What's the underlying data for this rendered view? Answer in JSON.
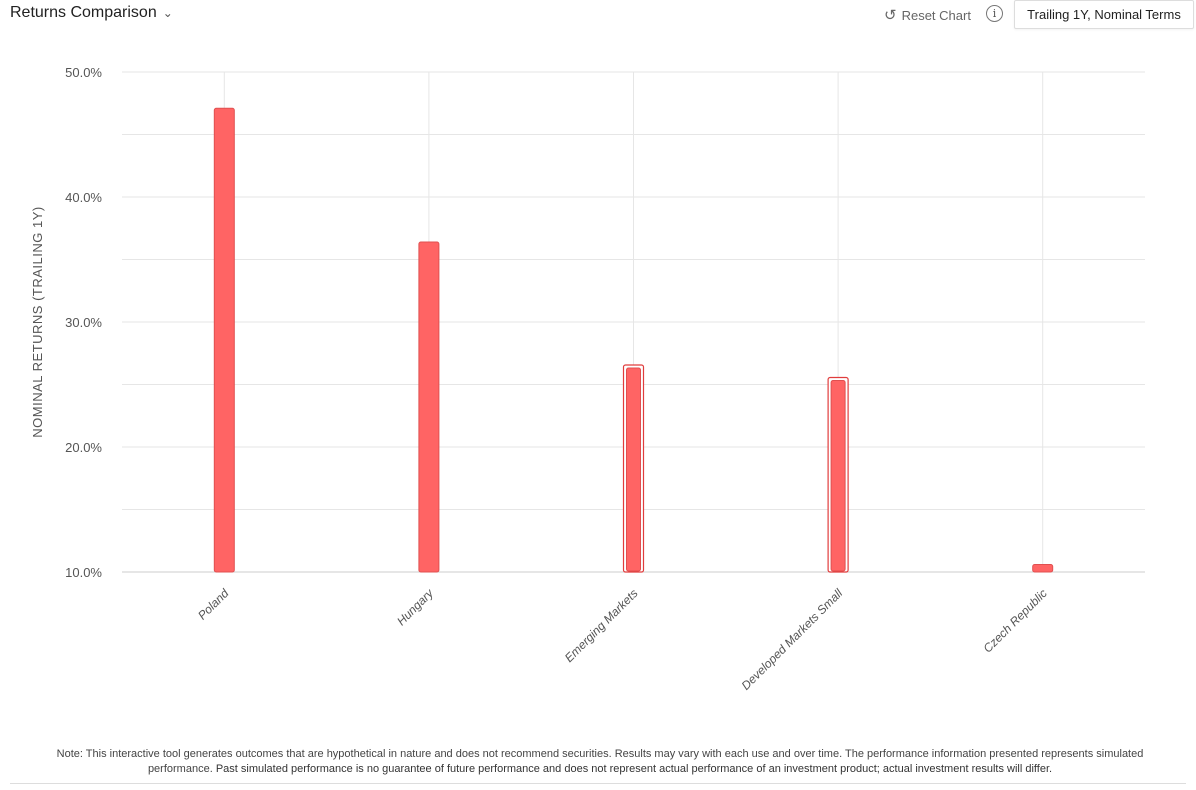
{
  "header": {
    "title": "Returns Comparison",
    "reset_label": "Reset Chart",
    "info_icon": "info-icon",
    "dropdown_value": "Trailing 1Y, Nominal Terms"
  },
  "chart_data": {
    "type": "bar",
    "title": "Returns Comparison",
    "ylabel": "NOMINAL RETURNS (TRAILING 1Y)",
    "xlabel": "",
    "ylim": [
      10,
      50
    ],
    "yticks": [
      10,
      20,
      30,
      40,
      50
    ],
    "ytick_labels": [
      "10.0%",
      "20.0%",
      "30.0%",
      "40.0%",
      "50.0%"
    ],
    "grid": true,
    "categories": [
      "Poland",
      "Hungary",
      "Emerging Markets",
      "Developed Markets Small",
      "Czech Republic"
    ],
    "values": [
      47.1,
      36.4,
      26.4,
      25.4,
      10.6
    ],
    "highlighted": [
      false,
      false,
      true,
      true,
      false
    ],
    "color": "#ff6464"
  },
  "note": {
    "text1": "Note: This interactive tool generates outcomes that are hypothetical in nature and does not recommend securities. Results may vary with each use and over time. The performance information presented represents simulated performance.",
    "text2": "Past simulated performance is no guarantee of future performance and does not represent actual performance of an investment product; actual investment results will differ."
  }
}
